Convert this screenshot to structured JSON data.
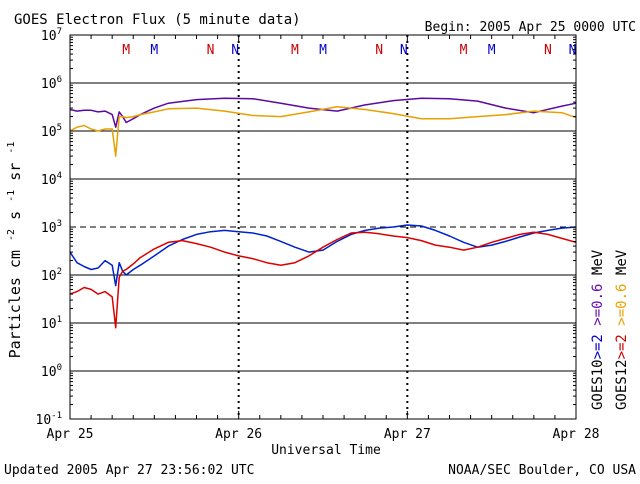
{
  "chart_data": {
    "type": "line",
    "title": "GOES Electron Flux (5 minute data)",
    "begin_label": "Begin: 2005 Apr 25 0000 UTC",
    "xlabel": "Universal Time",
    "ylabel_main": "Particles cm",
    "ylabel_exp_cm": "-2",
    "ylabel_s": "s",
    "ylabel_exp_s": "-1",
    "ylabel_sr": "sr",
    "ylabel_exp_sr": "-1",
    "footer_left": "Updated 2005 Apr 27 23:56:02 UTC",
    "footer_right": "NOAA/SEC Boulder, CO USA",
    "y_scale": "log",
    "ylim": [
      0.1,
      10000000
    ],
    "y_ticks": [
      {
        "value": 0.1,
        "base": "10",
        "exp": "-1"
      },
      {
        "value": 1,
        "base": "10",
        "exp": "0"
      },
      {
        "value": 10,
        "base": "10",
        "exp": "1"
      },
      {
        "value": 100,
        "base": "10",
        "exp": "2"
      },
      {
        "value": 1000,
        "base": "10",
        "exp": "3"
      },
      {
        "value": 10000,
        "base": "10",
        "exp": "4"
      },
      {
        "value": 100000,
        "base": "10",
        "exp": "5"
      },
      {
        "value": 1000000,
        "base": "10",
        "exp": "6"
      },
      {
        "value": 10000000,
        "base": "10",
        "exp": "7"
      }
    ],
    "xlim": [
      "2005-04-25",
      "2005-04-28"
    ],
    "x_ticks": [
      "Apr 25",
      "Apr 26",
      "Apr 27",
      "Apr 28"
    ],
    "threshold_line": 1000,
    "day_markers": [
      {
        "label": "M",
        "time_hours": 8.0,
        "color": "#cc0000"
      },
      {
        "label": "M",
        "time_hours": 12.0,
        "color": "#0000cc"
      },
      {
        "label": "N",
        "time_hours": 20.0,
        "color": "#cc0000"
      },
      {
        "label": "N",
        "time_hours": 23.5,
        "color": "#0000cc"
      },
      {
        "label": "M",
        "time_hours": 32.0,
        "color": "#cc0000"
      },
      {
        "label": "M",
        "time_hours": 36.0,
        "color": "#0000cc"
      },
      {
        "label": "N",
        "time_hours": 44.0,
        "color": "#cc0000"
      },
      {
        "label": "N",
        "time_hours": 47.5,
        "color": "#0000cc"
      },
      {
        "label": "M",
        "time_hours": 56.0,
        "color": "#cc0000"
      },
      {
        "label": "M",
        "time_hours": 60.0,
        "color": "#0000cc"
      },
      {
        "label": "N",
        "time_hours": 68.0,
        "color": "#cc0000"
      },
      {
        "label": "N",
        "time_hours": 71.5,
        "color": "#0000cc"
      }
    ],
    "legend_right": [
      {
        "text": "GOES10",
        "parts": [
          {
            "t": ">=2",
            "c": "#0000cc"
          },
          {
            "t": " ",
            "c": "#000000"
          },
          {
            "t": ">=0.6",
            "c": "#6a0dad"
          },
          {
            "t": " MeV",
            "c": "#000000"
          }
        ]
      },
      {
        "text": "GOES12",
        "parts": [
          {
            "t": ">=2",
            "c": "#cc0000"
          },
          {
            "t": " ",
            "c": "#000000"
          },
          {
            "t": ">=0.6",
            "c": "#f0a000"
          },
          {
            "t": " MeV",
            "c": "#000000"
          }
        ]
      }
    ],
    "series": [
      {
        "name": "GOES10 >=0.6 MeV",
        "color": "#5a0aa0",
        "x_hours": [
          0,
          1,
          2,
          3,
          4,
          5,
          6,
          6.5,
          7,
          7.5,
          8,
          9,
          10,
          12,
          14,
          18,
          22,
          26,
          30,
          34,
          38,
          42,
          46,
          50,
          54,
          58,
          62,
          66,
          70,
          72
        ],
        "y": [
          280000,
          260000,
          270000,
          270000,
          250000,
          260000,
          220000,
          120000,
          250000,
          200000,
          150000,
          180000,
          220000,
          300000,
          380000,
          450000,
          480000,
          470000,
          380000,
          300000,
          260000,
          350000,
          430000,
          480000,
          470000,
          420000,
          300000,
          240000,
          330000,
          380000
        ]
      },
      {
        "name": "GOES12 >=0.6 MeV",
        "color": "#e8a000",
        "x_hours": [
          0,
          1,
          2,
          3,
          4,
          5,
          6,
          6.5,
          7,
          7.5,
          8,
          9,
          10,
          12,
          14,
          18,
          22,
          26,
          30,
          34,
          38,
          42,
          46,
          50,
          54,
          58,
          62,
          66,
          70,
          72
        ],
        "y": [
          100000,
          120000,
          130000,
          110000,
          100000,
          110000,
          110000,
          30000,
          200000,
          200000,
          190000,
          200000,
          220000,
          250000,
          290000,
          300000,
          260000,
          210000,
          200000,
          250000,
          320000,
          280000,
          230000,
          180000,
          180000,
          200000,
          220000,
          260000,
          240000,
          190000
        ]
      },
      {
        "name": "GOES10 >=2 MeV",
        "color": "#0022cc",
        "x_hours": [
          0,
          1,
          2,
          3,
          4,
          5,
          6,
          6.5,
          7,
          7.5,
          8,
          9,
          10,
          12,
          14,
          16,
          18,
          20,
          22,
          24,
          26,
          28,
          30,
          32,
          34,
          36,
          38,
          40,
          42,
          44,
          46,
          48,
          50,
          52,
          54,
          56,
          58,
          60,
          62,
          64,
          66,
          68,
          70,
          72
        ],
        "y": [
          300,
          180,
          150,
          130,
          140,
          200,
          160,
          60,
          180,
          120,
          100,
          130,
          160,
          250,
          400,
          550,
          700,
          800,
          850,
          800,
          750,
          650,
          500,
          380,
          300,
          330,
          500,
          700,
          850,
          950,
          1000,
          1100,
          1050,
          850,
          650,
          480,
          380,
          420,
          500,
          620,
          750,
          850,
          950,
          1000
        ]
      },
      {
        "name": "GOES12 >=2 MeV",
        "color": "#dd0000",
        "x_hours": [
          0,
          1,
          2,
          3,
          4,
          5,
          6,
          6.5,
          7,
          7.5,
          8,
          9,
          10,
          12,
          14,
          16,
          18,
          20,
          22,
          24,
          26,
          28,
          30,
          32,
          34,
          36,
          38,
          40,
          42,
          44,
          46,
          48,
          50,
          52,
          54,
          56,
          58,
          60,
          62,
          64,
          66,
          68,
          70,
          72
        ],
        "y": [
          40,
          45,
          55,
          50,
          40,
          45,
          35,
          8,
          90,
          120,
          130,
          170,
          230,
          350,
          480,
          520,
          450,
          380,
          300,
          250,
          220,
          180,
          160,
          180,
          250,
          380,
          550,
          750,
          780,
          720,
          650,
          600,
          520,
          420,
          380,
          330,
          380,
          480,
          580,
          700,
          780,
          700,
          580,
          480
        ]
      }
    ]
  }
}
